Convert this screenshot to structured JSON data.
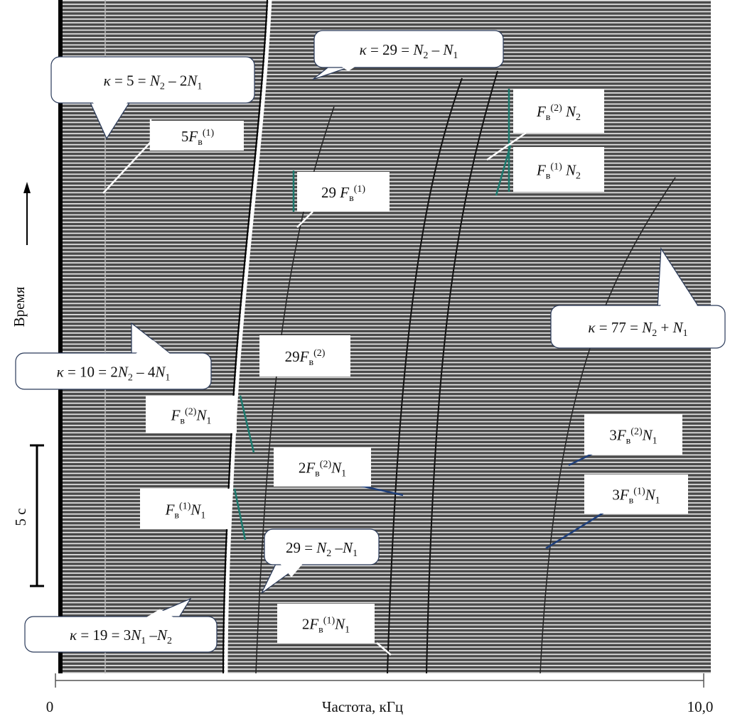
{
  "axis": {
    "x_label": "Частота, кГц",
    "x_min_label": "0",
    "x_max_label": "10,0"
  },
  "y_label": "Время",
  "scale_label": "5 с",
  "callouts": [
    {
      "text": [
        {
          "t": "κ",
          "s": "i"
        },
        {
          "t": " = 5 = "
        },
        {
          "t": "N",
          "s": "i"
        },
        {
          "t": "2",
          "s": "sub"
        },
        {
          "t": " – 2"
        },
        {
          "t": "N",
          "s": "i"
        },
        {
          "t": "1",
          "s": "sub"
        }
      ]
    },
    {
      "text": [
        {
          "t": "κ",
          "s": "i"
        },
        {
          "t": " = 29 = "
        },
        {
          "t": "N",
          "s": "i"
        },
        {
          "t": "2",
          "s": "sub"
        },
        {
          "t": " – "
        },
        {
          "t": "N",
          "s": "i"
        },
        {
          "t": "1",
          "s": "sub"
        }
      ]
    },
    {
      "text": [
        {
          "t": "5"
        },
        {
          "t": "F",
          "s": "i"
        },
        {
          "t": "в",
          "s": "sub"
        },
        {
          "t": "(1)",
          "s": "sup"
        }
      ]
    },
    {
      "text": [
        {
          "t": "29 "
        },
        {
          "t": "F",
          "s": "i"
        },
        {
          "t": "в",
          "s": "sub"
        },
        {
          "t": "(1)",
          "s": "sup"
        }
      ]
    },
    {
      "text": [
        {
          "t": "F",
          "s": "i"
        },
        {
          "t": "в",
          "s": "sub"
        },
        {
          "t": "(2)",
          "s": "sup"
        },
        {
          "t": " N",
          "s": "i"
        },
        {
          "t": "2",
          "s": "sub"
        }
      ]
    },
    {
      "text": [
        {
          "t": "F",
          "s": "i"
        },
        {
          "t": "в",
          "s": "sub"
        },
        {
          "t": "(1)",
          "s": "sup"
        },
        {
          "t": " N",
          "s": "i"
        },
        {
          "t": "2",
          "s": "sub"
        }
      ]
    },
    {
      "text": [
        {
          "t": "κ",
          "s": "i"
        },
        {
          "t": " = 77 = "
        },
        {
          "t": "N",
          "s": "i"
        },
        {
          "t": "2",
          "s": "sub"
        },
        {
          "t": " + "
        },
        {
          "t": "N",
          "s": "i"
        },
        {
          "t": "1",
          "s": "sub"
        }
      ]
    },
    {
      "text": [
        {
          "t": "κ",
          "s": "i"
        },
        {
          "t": " = 10 = 2"
        },
        {
          "t": "N",
          "s": "i"
        },
        {
          "t": "2",
          "s": "sub"
        },
        {
          "t": " – 4"
        },
        {
          "t": "N",
          "s": "i"
        },
        {
          "t": "1",
          "s": "sub"
        }
      ]
    },
    {
      "text": [
        {
          "t": "29"
        },
        {
          "t": "F",
          "s": "i"
        },
        {
          "t": "в",
          "s": "sub"
        },
        {
          "t": "(2)",
          "s": "sup"
        }
      ]
    },
    {
      "text": [
        {
          "t": "F",
          "s": "i"
        },
        {
          "t": "в",
          "s": "sub"
        },
        {
          "t": "(2)",
          "s": "sup"
        },
        {
          "t": "N",
          "s": "i"
        },
        {
          "t": "1",
          "s": "sub"
        }
      ]
    },
    {
      "text": [
        {
          "t": "2"
        },
        {
          "t": "F",
          "s": "i"
        },
        {
          "t": "в",
          "s": "sub"
        },
        {
          "t": "(2)",
          "s": "sup"
        },
        {
          "t": "N",
          "s": "i"
        },
        {
          "t": "1",
          "s": "sub"
        }
      ]
    },
    {
      "text": [
        {
          "t": "3"
        },
        {
          "t": "F",
          "s": "i"
        },
        {
          "t": "в",
          "s": "sub"
        },
        {
          "t": "(2)",
          "s": "sup"
        },
        {
          "t": "N",
          "s": "i"
        },
        {
          "t": "1",
          "s": "sub"
        }
      ]
    },
    {
      "text": [
        {
          "t": "F",
          "s": "i"
        },
        {
          "t": "в",
          "s": "sub"
        },
        {
          "t": "(1)",
          "s": "sup"
        },
        {
          "t": "N",
          "s": "i"
        },
        {
          "t": "1",
          "s": "sub"
        }
      ]
    },
    {
      "text": [
        {
          "t": "3"
        },
        {
          "t": "F",
          "s": "i"
        },
        {
          "t": "в",
          "s": "sub"
        },
        {
          "t": "(1)",
          "s": "sup"
        },
        {
          "t": "N",
          "s": "i"
        },
        {
          "t": "1",
          "s": "sub"
        }
      ]
    },
    {
      "text": [
        {
          "t": "29 = "
        },
        {
          "t": "N",
          "s": "i"
        },
        {
          "t": "2",
          "s": "sub"
        },
        {
          "t": " –"
        },
        {
          "t": "N",
          "s": "i"
        },
        {
          "t": "1",
          "s": "sub"
        }
      ]
    },
    {
      "text": [
        {
          "t": "κ",
          "s": "i"
        },
        {
          "t": " = 19 = 3"
        },
        {
          "t": "N",
          "s": "i"
        },
        {
          "t": "1",
          "s": "sub"
        },
        {
          "t": " –"
        },
        {
          "t": "N",
          "s": "i"
        },
        {
          "t": "2",
          "s": "sub"
        }
      ]
    },
    {
      "text": [
        {
          "t": "2"
        },
        {
          "t": "F",
          "s": "i"
        },
        {
          "t": "в",
          "s": "sub"
        },
        {
          "t": "(1)",
          "s": "sup"
        },
        {
          "t": "N",
          "s": "i"
        },
        {
          "t": "1",
          "s": "sub"
        }
      ]
    }
  ]
}
